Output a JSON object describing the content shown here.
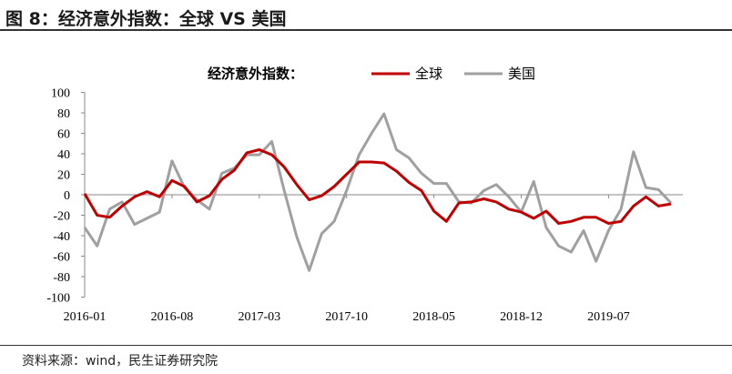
{
  "title": "图 8：经济意外指数：全球 VS 美国",
  "source": "资料来源：wind，民生证券研究院",
  "chart_data": {
    "type": "line",
    "title": "",
    "legend_title": "经济意外指数：",
    "legend_placement": "top-center",
    "xlabel": "",
    "ylabel": "",
    "ylim": [
      -100,
      100
    ],
    "yticks": [
      100,
      80,
      60,
      40,
      20,
      0,
      -20,
      -40,
      -60,
      -80,
      -100
    ],
    "xticks": [
      "2016-01",
      "2016-08",
      "2017-03",
      "2017-10",
      "2018-05",
      "2018-12",
      "2019-07"
    ],
    "grid": false,
    "x": [
      "2016-01",
      "2016-02",
      "2016-03",
      "2016-04",
      "2016-05",
      "2016-06",
      "2016-07",
      "2016-08",
      "2016-09",
      "2016-10",
      "2016-11",
      "2016-12",
      "2017-01",
      "2017-02",
      "2017-03",
      "2017-04",
      "2017-05",
      "2017-06",
      "2017-07",
      "2017-08",
      "2017-09",
      "2017-10",
      "2017-11",
      "2017-12",
      "2018-01",
      "2018-02",
      "2018-03",
      "2018-04",
      "2018-05",
      "2018-06",
      "2018-07",
      "2018-08",
      "2018-09",
      "2018-10",
      "2018-11",
      "2018-12",
      "2019-01",
      "2019-02",
      "2019-03",
      "2019-04",
      "2019-05",
      "2019-06",
      "2019-07",
      "2019-08",
      "2019-09",
      "2019-10",
      "2019-11",
      "2019-12"
    ],
    "series": [
      {
        "name": "全球",
        "color": "#c00000",
        "values": [
          1,
          -20,
          -22,
          -11,
          -2,
          3,
          -2,
          14,
          8,
          -7,
          -1,
          15,
          24,
          41,
          44,
          39,
          27,
          10,
          -5,
          -1,
          8,
          20,
          32,
          32,
          31,
          23,
          12,
          4,
          -16,
          -26,
          -8,
          -7,
          -4,
          -7,
          -14,
          -17,
          -23,
          -16,
          -28,
          -26,
          -22,
          -22,
          -28,
          -26,
          -11,
          -2,
          -11,
          -9
        ]
      },
      {
        "name": "美国",
        "color": "#a0a0a0",
        "values": [
          -32,
          -50,
          -14,
          -7,
          -29,
          -23,
          -17,
          33,
          7,
          -5,
          -14,
          21,
          26,
          39,
          39,
          52,
          4,
          -41,
          -74,
          -38,
          -26,
          4,
          39,
          60,
          79,
          44,
          36,
          21,
          11,
          11,
          -7,
          -8,
          4,
          10,
          -2,
          -17,
          13,
          -32,
          -50,
          -56,
          -35,
          -65,
          -35,
          -14,
          42,
          7,
          5,
          -8
        ]
      }
    ]
  }
}
